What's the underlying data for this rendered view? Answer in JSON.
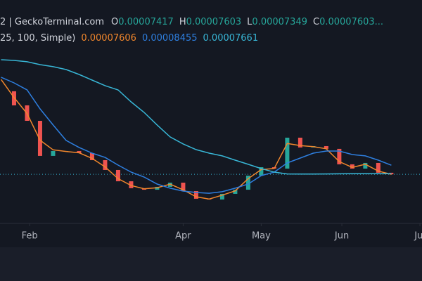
{
  "header": {
    "source": "2 | GeckoTerminal.com",
    "ohlc": [
      {
        "key": "O",
        "value": "0.00007417"
      },
      {
        "key": "H",
        "value": "0.00007603"
      },
      {
        "key": "L",
        "value": "0.00007349"
      },
      {
        "key": "C",
        "value": "0.00007603..."
      }
    ],
    "ma_params": "25, 100, Simple)"
  },
  "chart_data": {
    "type": "candlestick",
    "x": [
      20,
      25,
      30,
      35,
      40,
      45,
      50,
      55,
      60,
      65,
      70,
      75,
      80,
      85,
      90,
      95,
      100,
      105,
      110,
      115,
      120,
      125,
      130,
      135,
      140,
      145,
      150,
      155,
      160,
      165,
      170
    ],
    "close": [
      0.0001539,
      0.0001407,
      0.0001262,
      9.33e-05,
      9.79e-05,
      9.79e-05,
      9.59e-05,
      8.93e-05,
      8.01e-05,
      6.95e-05,
      6.3e-05,
      6.16e-05,
      6.43e-05,
      6.82e-05,
      6.03e-05,
      5.31e-05,
      5.24e-05,
      5.77e-05,
      6.16e-05,
      7.48e-05,
      8.27e-05,
      8.14e-05,
      0.0001104,
      0.0001012,
      0.0001025,
      9.99e-05,
      8.54e-05,
      8.14e-05,
      8.67e-05,
      7.75e-05,
      7.603e-05
    ],
    "up_color": "#26a69a",
    "down_color": "#ef5350",
    "series": [
      {
        "color": "#f0862c",
        "legend_value": "0.00007606",
        "values": [
          0.000165,
          0.000148,
          0.000133,
          0.000108,
          9.9e-05,
          9.75e-05,
          9.62e-05,
          9.1e-05,
          8.3e-05,
          7.2e-05,
          6.55e-05,
          6.25e-05,
          6.35e-05,
          6.68e-05,
          6.15e-05,
          5.5e-05,
          5.28e-05,
          5.65e-05,
          6.05e-05,
          7.2e-05,
          8.05e-05,
          8.15e-05,
          0.000105,
          0.000103,
          0.000102,
          0.0001,
          8.8e-05,
          8.25e-05,
          8.55e-05,
          7.9e-05,
          7.606e-05
        ]
      },
      {
        "color": "#2e7fe0",
        "legend_value": "0.00008455",
        "values": [
          0.0001671,
          0.0001618,
          0.0001552,
          0.0001374,
          0.0001223,
          0.0001078,
          0.0001012,
          9.59e-05,
          9.19e-05,
          8.47e-05,
          7.81e-05,
          7.35e-05,
          6.69e-05,
          6.3e-05,
          6.03e-05,
          5.9e-05,
          5.83e-05,
          5.97e-05,
          6.3e-05,
          6.69e-05,
          7.48e-05,
          7.81e-05,
          8.67e-05,
          9.13e-05,
          9.59e-05,
          9.79e-05,
          9.79e-05,
          9.46e-05,
          9.33e-05,
          8.93e-05,
          8.455e-05
        ]
      },
      {
        "color": "#38b6d6",
        "legend_value": "0.00007661",
        "values": [
          0.0001835,
          0.0001829,
          0.0001816,
          0.0001789,
          0.000177,
          0.0001743,
          0.0001697,
          0.0001644,
          0.0001592,
          0.0001552,
          0.000144,
          0.0001341,
          0.0001223,
          0.0001111,
          0.0001045,
          9.92e-05,
          9.59e-05,
          9.33e-05,
          8.93e-05,
          8.54e-05,
          8.14e-05,
          7.81e-05,
          7.64e-05,
          7.63e-05,
          7.63e-05,
          7.64e-05,
          7.65e-05,
          7.66e-05,
          7.66e-05,
          7.66e-05,
          7.661e-05
        ]
      }
    ],
    "xlim": [
      19.6,
      181.8
    ],
    "ylim": [
      3e-05,
      0.0002
    ],
    "xticks": [
      {
        "value": 31,
        "label": "Feb"
      },
      {
        "value": 90,
        "label": "Apr"
      },
      {
        "value": 120,
        "label": "May"
      },
      {
        "value": 151,
        "label": "Jun"
      },
      {
        "value": 181,
        "label": "Jul"
      }
    ],
    "price_line": true
  }
}
